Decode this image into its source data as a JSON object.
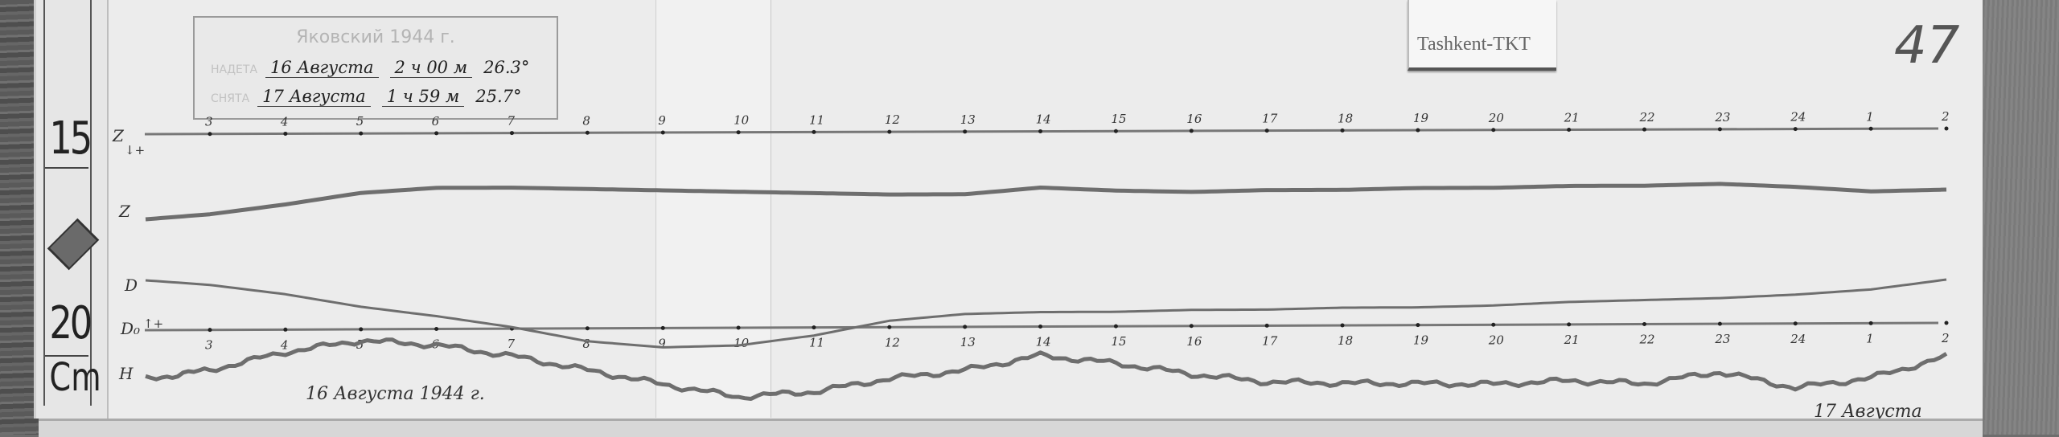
{
  "record": {
    "observatory_label": "Tashkent-TKT",
    "sheet_number": "47",
    "stamp": {
      "title": "Яковский 1944 г.",
      "put_on_label": "НАДЕТА",
      "put_on_date": "16 Августа",
      "put_on_time": "2 ч 00 м",
      "put_on_temp": "26.3°",
      "taken_off_label": "СНЯТА",
      "taken_off_date": "17 Августа",
      "taken_off_time": "1 ч 59 м",
      "taken_off_temp": "25.7°"
    },
    "date_start": "16 Августа 1944 г.",
    "date_end": "17 Августа",
    "ruler": {
      "mark_top": "15",
      "mark_bottom": "20",
      "unit": "Cm"
    }
  },
  "chart_data": {
    "type": "line",
    "title": "",
    "xlabel": "",
    "ylabel": "",
    "grid": false,
    "x_tick_labels": [
      "3",
      "4",
      "5",
      "6",
      "7",
      "8",
      "9",
      "10",
      "11",
      "12",
      "13",
      "14",
      "15",
      "16",
      "17",
      "18",
      "19",
      "20",
      "21",
      "22",
      "23",
      "24",
      "1",
      "2"
    ],
    "baselines": [
      {
        "name": "Z",
        "label": "Z",
        "direction": "↓+"
      },
      {
        "name": "D0",
        "label": "D₀",
        "direction": "↑+"
      }
    ],
    "series": [
      {
        "name": "Z",
        "baseline": "Z",
        "values": [
          -25,
          -22,
          -18.5,
          -17,
          -17,
          -17.5,
          -18,
          -18.5,
          -19,
          -19.5,
          -19.5,
          -17.5,
          -18.5,
          -19,
          -18.5,
          -18.5,
          -18,
          -18,
          -17.5,
          -17.5,
          -17,
          -18,
          -19.5,
          -19
        ]
      },
      {
        "name": "D",
        "baseline": "D0",
        "values": [
          14,
          11,
          7,
          4,
          0.5,
          -4,
          -6,
          -5.5,
          -2.5,
          2,
          4,
          4.5,
          4.5,
          5,
          5,
          5.5,
          5.5,
          6,
          7,
          7.5,
          8,
          9,
          10.5,
          13.5
        ]
      },
      {
        "name": "H",
        "baseline": "D0",
        "values": [
          -12.5,
          -7,
          -3.5,
          -5,
          -8.5,
          -13,
          -17.5,
          -21.5,
          -20,
          -16,
          -13.5,
          -9,
          -11.5,
          -15,
          -17.5,
          -18,
          -18.2,
          -18.5,
          -17.5,
          -18.5,
          -15,
          -20,
          -17,
          -10.5
        ]
      }
    ],
    "trace_color": "#6e6e6e"
  }
}
